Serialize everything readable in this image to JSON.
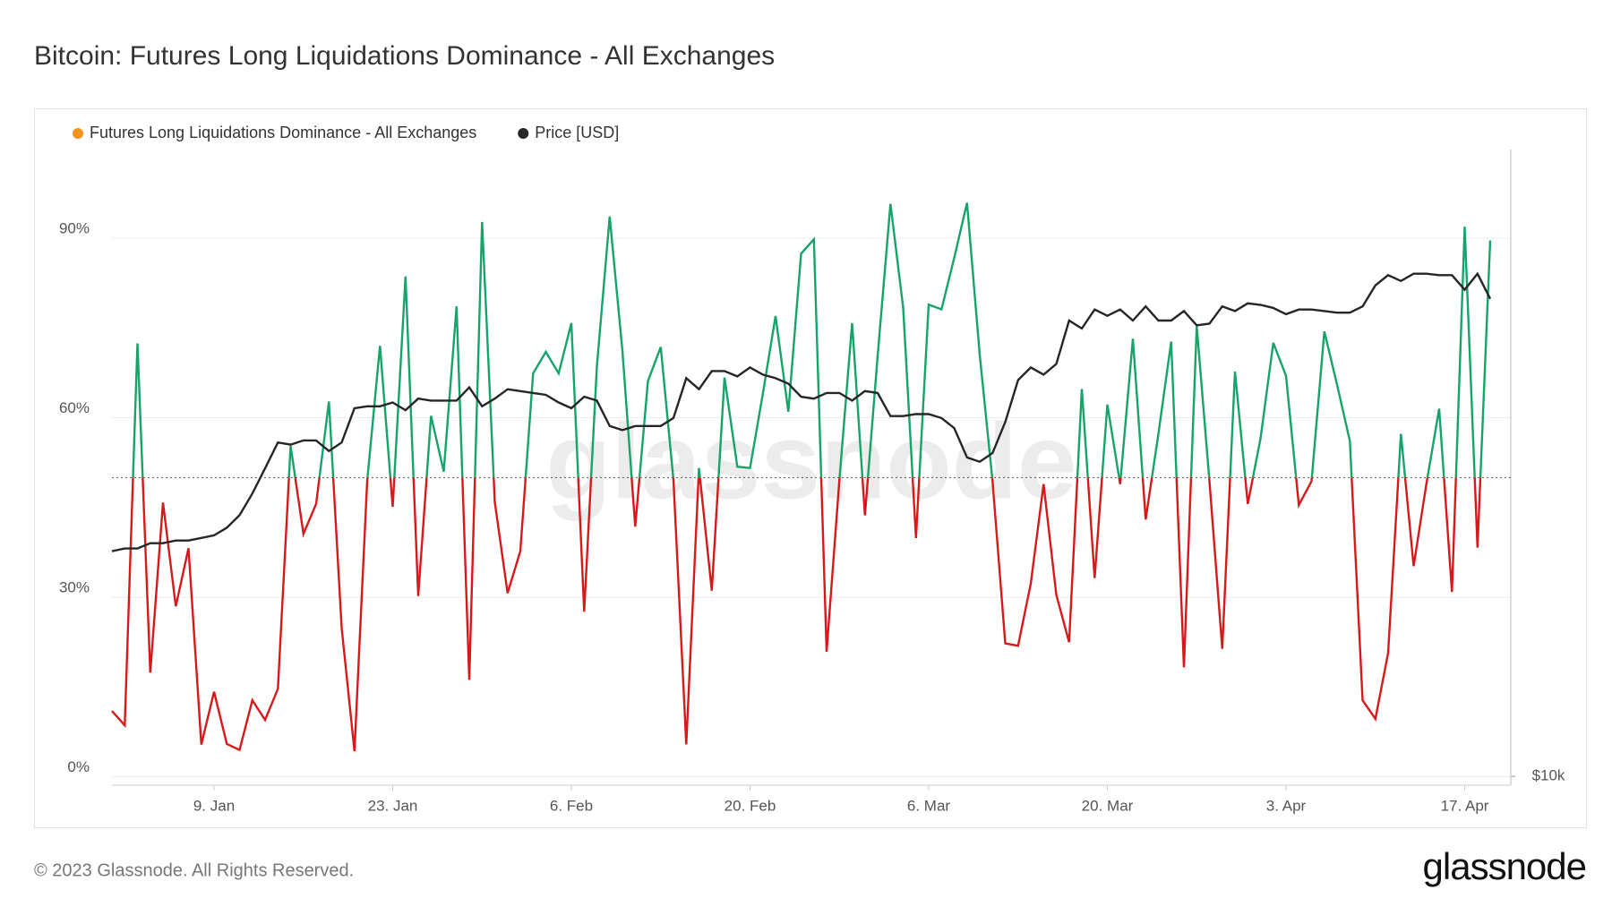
{
  "chart_data": {
    "type": "line",
    "title": "Bitcoin: Futures Long Liquidations Dominance - All Exchanges",
    "footer": "© 2023 Glassnode. All Rights Reserved.",
    "logo": "glassnode",
    "watermark": "glassnode",
    "categories": [
      null,
      null,
      null,
      null,
      null,
      null,
      null,
      null,
      "9. Jan",
      null,
      null,
      null,
      null,
      null,
      null,
      null,
      null,
      null,
      null,
      null,
      null,
      null,
      "23. Jan",
      null,
      null,
      null,
      null,
      null,
      null,
      null,
      null,
      null,
      null,
      null,
      null,
      null,
      "6. Feb",
      null,
      null,
      null,
      null,
      null,
      null,
      null,
      null,
      null,
      null,
      null,
      null,
      null,
      "20. Feb",
      null,
      null,
      null,
      null,
      null,
      null,
      null,
      null,
      null,
      null,
      null,
      null,
      null,
      "6. Mar",
      null,
      null,
      null,
      null,
      null,
      null,
      null,
      null,
      null,
      null,
      null,
      null,
      null,
      "20. Mar",
      null,
      null,
      null,
      null,
      null,
      null,
      null,
      null,
      null,
      null,
      null,
      null,
      null,
      "3. Apr",
      null,
      null,
      null,
      null,
      null,
      null,
      null,
      null,
      null,
      null,
      null,
      null,
      null,
      "17. Apr",
      null,
      null
    ],
    "series": [
      {
        "name": "Futures Long Liquidations Dominance - All Exchanges",
        "color": "#f7931a",
        "above_color": "#17a46b",
        "below_color": "#d7191c",
        "values": [
          11,
          8.6,
          72.4,
          17.4,
          45.8,
          28.5,
          38.2,
          5.4,
          14.2,
          5.5,
          4.5,
          12.8,
          9.5,
          14.7,
          55.3,
          40.6,
          45.6,
          62.7,
          24.9,
          4.3,
          49.4,
          72,
          45.1,
          83.6,
          30.2,
          60.3,
          51,
          78.6,
          16.2,
          92.7,
          45.9,
          30.7,
          37.7,
          67.4,
          71,
          67.4,
          75.8,
          27.6,
          68.6,
          93.6,
          71.2,
          41.8,
          66.1,
          71.8,
          49.6,
          5.4,
          51.6,
          31.1,
          66.7,
          51.8,
          51.6,
          64,
          77,
          61,
          87.4,
          89.8,
          20.9,
          49.6,
          75.8,
          43.7,
          70.3,
          95.7,
          78.4,
          39.9,
          78.9,
          78.1,
          86.7,
          95.9,
          70.5,
          49.4,
          22.3,
          21.9,
          32.3,
          48.9,
          30.4,
          22.5,
          64.8,
          33.2,
          62.2,
          48.9,
          73.2,
          43,
          57.3,
          72.7,
          18.3,
          75.3,
          49.4,
          21.4,
          67.7,
          45.6,
          56.5,
          72.5,
          67,
          45.4,
          49.4,
          74.4,
          65.5,
          56.1,
          12.8,
          9.7,
          20.7,
          57.3,
          35.2,
          49,
          61.5,
          30.9,
          91.9,
          38.3,
          89.6
        ]
      },
      {
        "name": "Price [USD]",
        "color": "#262626",
        "axis": "y2",
        "values": [
          16600,
          16700,
          16700,
          16900,
          16900,
          17000,
          17000,
          17100,
          17200,
          17500,
          18000,
          18900,
          20000,
          21200,
          21100,
          21300,
          21300,
          20800,
          21200,
          22900,
          23000,
          23000,
          23200,
          22800,
          23400,
          23300,
          23300,
          23300,
          24000,
          23000,
          23400,
          23900,
          23800,
          23700,
          23600,
          23200,
          22900,
          23500,
          23300,
          22000,
          21800,
          22000,
          22000,
          22000,
          22400,
          24500,
          23900,
          24900,
          24900,
          24600,
          25100,
          24700,
          24500,
          24200,
          23500,
          23400,
          23700,
          23700,
          23300,
          23800,
          23700,
          22500,
          22500,
          22600,
          22600,
          22400,
          21900,
          20500,
          20300,
          20700,
          22200,
          24400,
          25100,
          24700,
          25300,
          27900,
          27400,
          28600,
          28200,
          28600,
          27900,
          28800,
          27900,
          27900,
          28500,
          27600,
          27700,
          28800,
          28500,
          29000,
          28900,
          28700,
          28300,
          28600,
          28600,
          28500,
          28400,
          28400,
          28800,
          30200,
          30900,
          30500,
          31000,
          31000,
          30900,
          30900,
          29900,
          31000,
          29300
        ]
      }
    ],
    "threshold": 50,
    "ylim": [
      -1.4,
      104.8
    ],
    "yticks": [
      {
        "value": 0,
        "label": "0%"
      },
      {
        "value": 30,
        "label": "30%"
      },
      {
        "value": 60,
        "label": "60%"
      },
      {
        "value": 90,
        "label": "90%"
      }
    ],
    "y2lim": [
      9800,
      41000
    ],
    "y2log": true,
    "y2ticks": [
      {
        "value": 10000,
        "label": "$10k"
      }
    ],
    "grid": true
  }
}
